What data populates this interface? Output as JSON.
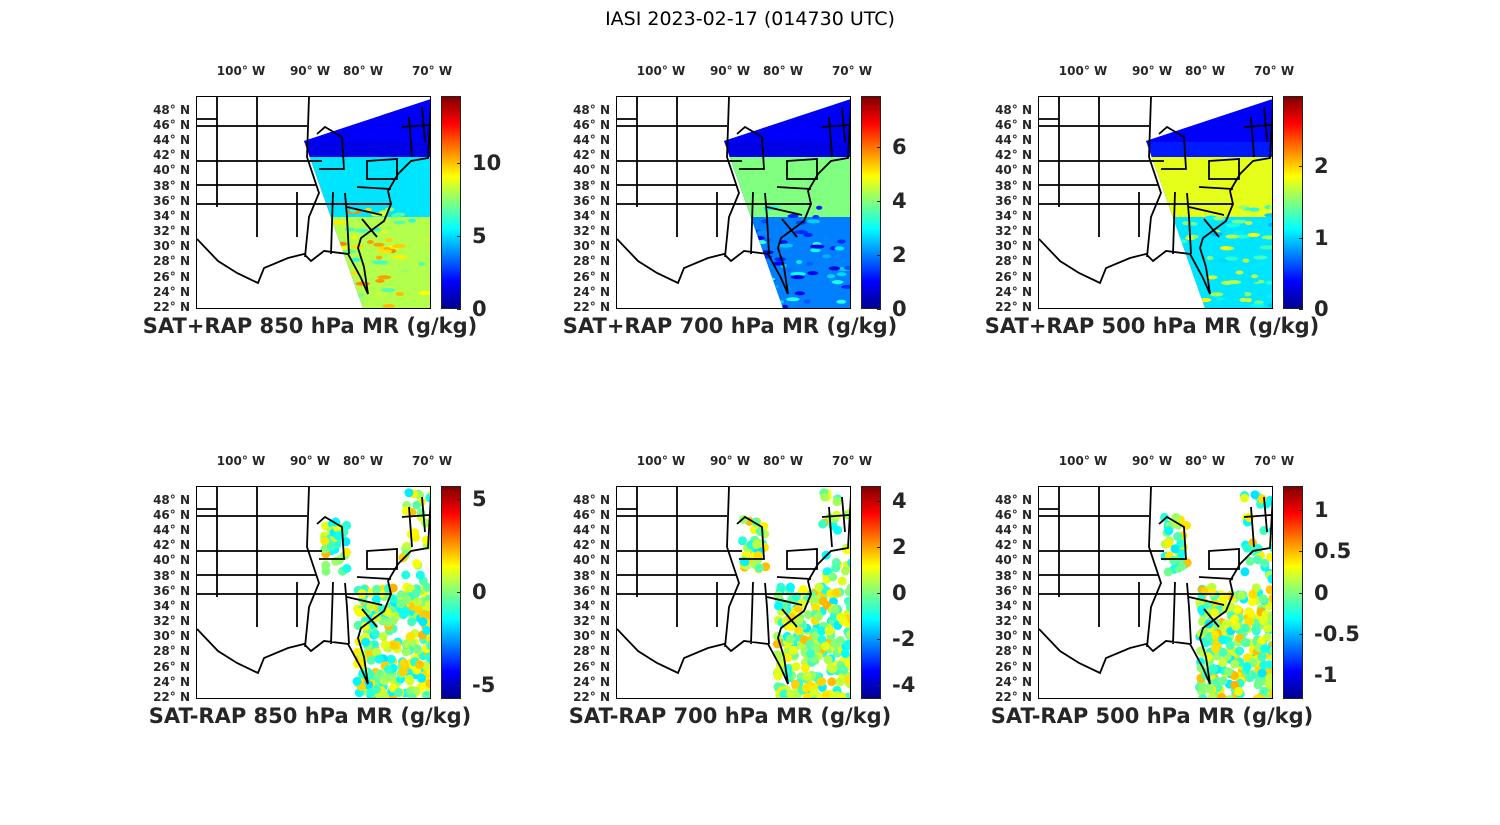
{
  "figure_title": "IASI 2023-02-17 (014730 UTC)",
  "lat_labels": [
    "48° N",
    "46° N",
    "44° N",
    "42° N",
    "40° N",
    "38° N",
    "36° N",
    "34° N",
    "32° N",
    "30° N",
    "28° N",
    "26° N",
    "24° N",
    "22° N"
  ],
  "lat_values": [
    48,
    46,
    44,
    42,
    40,
    38,
    36,
    34,
    32,
    30,
    28,
    26,
    24,
    22
  ],
  "lon_labels": [
    "100° W",
    "90° W",
    "80° W",
    "70° W"
  ],
  "lon_values": [
    -100,
    -90,
    -80,
    -70
  ],
  "panels": [
    {
      "title": "SAT+RAP 850 hPa MR (g/kg)",
      "type": "sum",
      "clim": [
        0,
        14.6
      ],
      "ticks": [
        0,
        5,
        10
      ],
      "tick_labels": [
        "0",
        "5",
        "10"
      ]
    },
    {
      "title": "SAT+RAP 700 hPa MR (g/kg)",
      "type": "sum",
      "clim": [
        0,
        7.9
      ],
      "ticks": [
        0,
        2,
        4,
        6
      ],
      "tick_labels": [
        "0",
        "2",
        "4",
        "6"
      ]
    },
    {
      "title": "SAT+RAP 500 hPa MR (g/kg)",
      "type": "sum",
      "clim": [
        0,
        2.98
      ],
      "ticks": [
        0,
        1,
        2
      ],
      "tick_labels": [
        "0",
        "1",
        "2"
      ]
    },
    {
      "title": "SAT-RAP 850 hPa MR (g/kg)",
      "type": "diff",
      "clim": [
        -5.75,
        5.7
      ],
      "ticks": [
        -5,
        0,
        5
      ],
      "tick_labels": [
        "-5",
        "0",
        "5"
      ]
    },
    {
      "title": "SAT-RAP 700 hPa MR (g/kg)",
      "type": "diff",
      "clim": [
        -4.6,
        4.65
      ],
      "ticks": [
        -4,
        -2,
        0,
        2,
        4
      ],
      "tick_labels": [
        "-4",
        "-2",
        "0",
        "2",
        "4"
      ]
    },
    {
      "title": "SAT-RAP 500 hPa MR (g/kg)",
      "type": "diff",
      "clim": [
        -1.29,
        1.29
      ],
      "ticks": [
        -1,
        -0.5,
        0,
        0.5,
        1
      ],
      "tick_labels": [
        "-1",
        "-0.5",
        "0",
        "0.5",
        "1"
      ]
    }
  ]
}
